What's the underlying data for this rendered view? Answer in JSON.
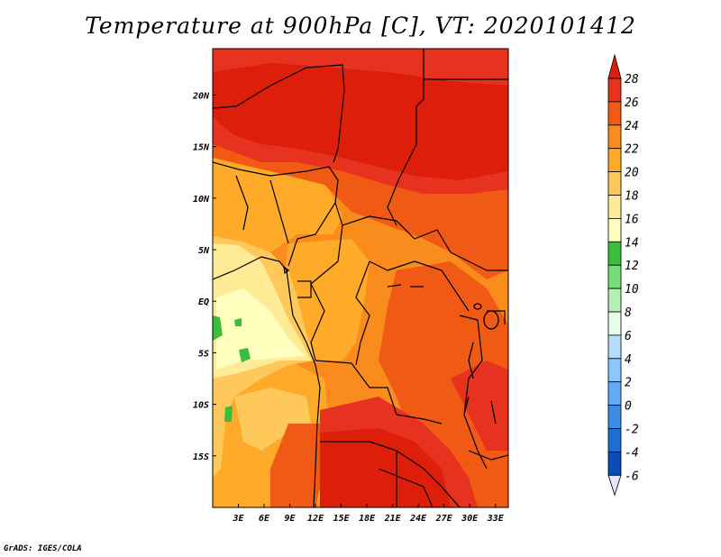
{
  "title": "Temperature at 900hPa [C], VT: 2020101412",
  "credit": "GrADS: IGES/COLA",
  "map": {
    "lon_range": [
      0,
      34.5
    ],
    "lat_range": [
      -20,
      24.5
    ],
    "lon_ticks": [
      {
        "value": 3,
        "label": "3E"
      },
      {
        "value": 6,
        "label": "6E"
      },
      {
        "value": 9,
        "label": "9E"
      },
      {
        "value": 12,
        "label": "12E"
      },
      {
        "value": 15,
        "label": "15E"
      },
      {
        "value": 18,
        "label": "18E"
      },
      {
        "value": 21,
        "label": "21E"
      },
      {
        "value": 24,
        "label": "24E"
      },
      {
        "value": 27,
        "label": "27E"
      },
      {
        "value": 30,
        "label": "30E"
      },
      {
        "value": 33,
        "label": "33E"
      }
    ],
    "lat_ticks": [
      {
        "value": 20,
        "label": "20N"
      },
      {
        "value": 15,
        "label": "15N"
      },
      {
        "value": 10,
        "label": "10N"
      },
      {
        "value": 5,
        "label": "5N"
      },
      {
        "value": 0,
        "label": "EQ"
      },
      {
        "value": -5,
        "label": "5S"
      },
      {
        "value": -10,
        "label": "10S"
      },
      {
        "value": -15,
        "label": "15S"
      }
    ]
  },
  "colorbar": {
    "levels": [
      "28",
      "26",
      "24",
      "22",
      "20",
      "18",
      "16",
      "14",
      "12",
      "10",
      "8",
      "6",
      "4",
      "2",
      "0",
      "-2",
      "-4",
      "-6"
    ],
    "colors": {
      "above_28": "#dc1e0a",
      "26_28": "#e6321e",
      "24_26": "#f05a14",
      "22_24": "#fa8c1e",
      "20_22": "#ffaa28",
      "18_20": "#ffc85a",
      "16_18": "#ffeb96",
      "14_16": "#ffffbe",
      "12_14": "#3cbe3c",
      "10_12": "#78dc78",
      "8_10": "#b4f0b4",
      "6_8": "#e6ffe6",
      "4_6": "#b4dcff",
      "2_4": "#8cc8ff",
      "0_2": "#64aaf5",
      "-2_0": "#3c8ce6",
      "-4_-2": "#1e6ed2",
      "-6_-4": "#0a4bb4",
      "below_-6": "#00207a",
      "lowest": "#e6e6ff"
    }
  }
}
